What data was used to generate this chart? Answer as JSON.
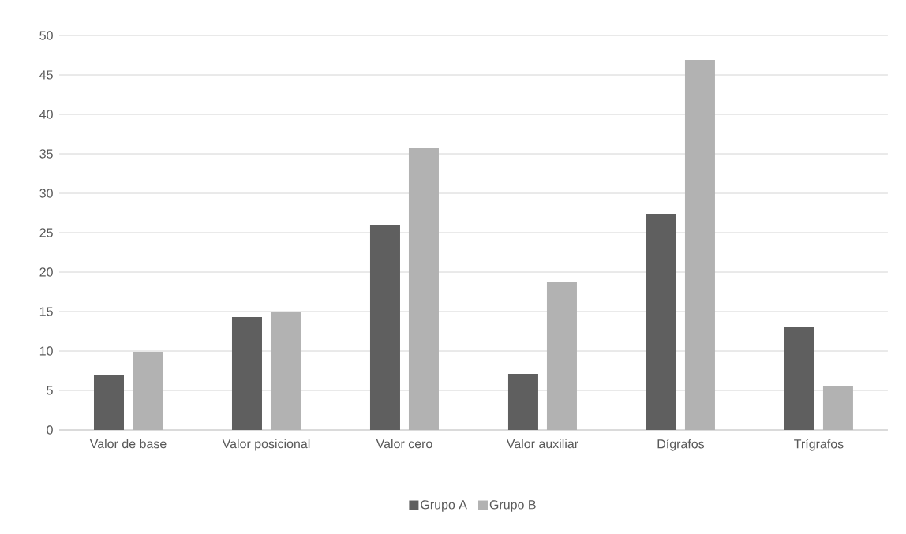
{
  "chart_data": {
    "type": "bar",
    "categories": [
      "Valor de base",
      "Valor posicional",
      "Valor cero",
      "Valor auxiliar",
      "Dígrafos",
      "Trígrafos"
    ],
    "series": [
      {
        "name": "Grupo A",
        "color": "#5f5f5f",
        "values": [
          6.9,
          14.3,
          26.0,
          7.1,
          27.4,
          13.0
        ]
      },
      {
        "name": "Grupo B",
        "color": "#b2b2b2",
        "values": [
          9.9,
          14.9,
          35.8,
          18.8,
          46.9,
          5.5
        ]
      }
    ],
    "ylim": [
      0,
      50
    ],
    "yticks": [
      0,
      5,
      10,
      15,
      20,
      25,
      30,
      35,
      40,
      45,
      50
    ],
    "grid": "y",
    "legend": "bottom"
  }
}
